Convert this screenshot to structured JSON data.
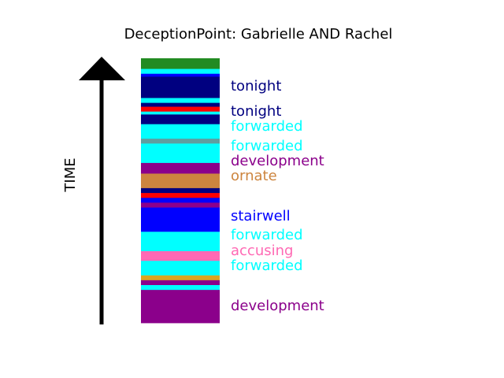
{
  "title": "DeceptionPoint: Gabrielle AND Rachel",
  "axis_label": "TIME",
  "bar_segments_top_to_bottom": [
    {
      "color": "#228b22",
      "span": 2.2
    },
    {
      "color": "#00ffff",
      "span": 1.0
    },
    {
      "color": "#0000ff",
      "span": 0.6
    },
    {
      "color": "#000080",
      "span": 4.4
    },
    {
      "color": "#00ffff",
      "span": 1.0
    },
    {
      "color": "#000080",
      "span": 0.8
    },
    {
      "color": "#ff0000",
      "span": 1.0
    },
    {
      "color": "#00ffff",
      "span": 0.6
    },
    {
      "color": "#000080",
      "span": 2.0
    },
    {
      "color": "#00ffff",
      "span": 3.0
    },
    {
      "color": "#5f9ea0",
      "span": 1.0
    },
    {
      "color": "#00ffff",
      "span": 4.0
    },
    {
      "color": "#8b008b",
      "span": 2.2
    },
    {
      "color": "#cd853f",
      "span": 3.0
    },
    {
      "color": "#000080",
      "span": 1.0
    },
    {
      "color": "#ff0000",
      "span": 1.0
    },
    {
      "color": "#0000ff",
      "span": 1.0
    },
    {
      "color": "#8b008b",
      "span": 1.0
    },
    {
      "color": "#0000ff",
      "span": 5.0
    },
    {
      "color": "#00ffff",
      "span": 4.0
    },
    {
      "color": "#ff69b4",
      "span": 2.0
    },
    {
      "color": "#00ffff",
      "span": 3.0
    },
    {
      "color": "#daa520",
      "span": 1.0
    },
    {
      "color": "#8b008b",
      "span": 1.0
    },
    {
      "color": "#00ffff",
      "span": 1.0
    },
    {
      "color": "#8b008b",
      "span": 6.8
    }
  ],
  "labels_top_to_bottom": [
    {
      "text": "tonight",
      "color": "#000080"
    },
    {
      "text": "tonight",
      "color": "#000080"
    },
    {
      "text": "forwarded",
      "color": "#00ffff"
    },
    {
      "text": "forwarded",
      "color": "#00ffff"
    },
    {
      "text": "development",
      "color": "#8b008b"
    },
    {
      "text": "ornate",
      "color": "#cd853f"
    },
    {
      "text": "stairwell",
      "color": "#0000ff"
    },
    {
      "text": "forwarded",
      "color": "#00ffff"
    },
    {
      "text": "accusing",
      "color": "#ff69b4"
    },
    {
      "text": "forwarded",
      "color": "#00ffff"
    },
    {
      "text": "development",
      "color": "#8b008b"
    }
  ]
}
